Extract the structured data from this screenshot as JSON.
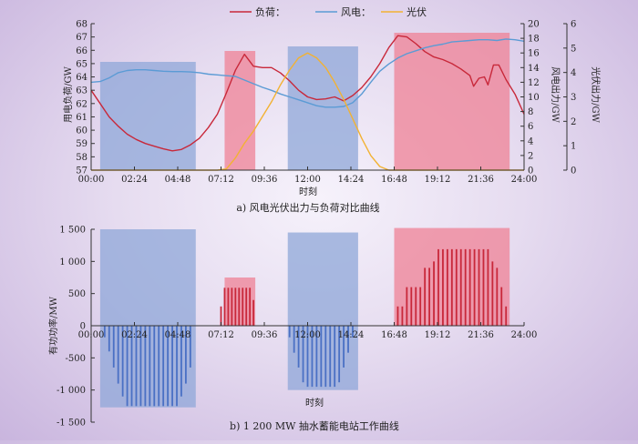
{
  "chart_data": [
    {
      "type": "line",
      "caption": "a) 风电光伏出力与负荷对比曲线",
      "xlabel": "时刻",
      "x_ticks": [
        "00:00",
        "02:24",
        "04:48",
        "07:12",
        "09:36",
        "12:00",
        "14:24",
        "16:48",
        "19:12",
        "21:36",
        "24:00"
      ],
      "xlim_hours": [
        0,
        24
      ],
      "y_left": {
        "label": "用电负荷/GW",
        "lim": [
          57,
          68
        ],
        "ticks": [
          57,
          58,
          59,
          60,
          61,
          62,
          63,
          64,
          65,
          66,
          67,
          68
        ]
      },
      "y_right1": {
        "label": "风电出力/GW",
        "lim": [
          0,
          20
        ],
        "ticks": [
          0,
          2,
          4,
          6,
          8,
          10,
          12,
          14,
          16,
          18,
          20
        ]
      },
      "y_right2": {
        "label": "光伏出力/GW",
        "lim": [
          0,
          6
        ],
        "ticks": [
          0,
          1,
          2,
          3,
          4,
          5,
          6
        ]
      },
      "legend": {
        "position": "top-center",
        "entries": [
          "负荷：",
          "风电：",
          "光伏"
        ]
      },
      "colors": {
        "load": "#c8283a",
        "wind": "#5b9bd5",
        "pv": "#f2b233",
        "blue_band": "#8fa7d8",
        "red_band": "#ef8295"
      },
      "bands": [
        {
          "color": "blue",
          "start": 0.5,
          "end": 5.8
        },
        {
          "color": "red",
          "start": 7.4,
          "end": 9.1
        },
        {
          "color": "blue",
          "start": 10.9,
          "end": 14.8
        },
        {
          "color": "red",
          "start": 16.8,
          "end": 23.2
        }
      ],
      "series": [
        {
          "name": "负荷：",
          "axis": "left",
          "color": "#c8283a",
          "x": [
            0,
            0.5,
            1,
            1.5,
            2,
            2.5,
            3,
            3.5,
            4,
            4.5,
            5,
            5.5,
            6,
            6.5,
            7,
            7.5,
            8,
            8.5,
            9,
            9.5,
            10,
            10.5,
            11,
            11.5,
            12,
            12.5,
            13,
            13.5,
            14,
            14.5,
            15,
            15.5,
            16,
            16.5,
            17,
            17.5,
            18,
            18.5,
            19,
            19.5,
            20,
            20.5,
            21,
            21.2,
            21.5,
            21.8,
            22,
            22.3,
            22.6,
            23,
            23.5,
            24
          ],
          "values": [
            63.0,
            62.0,
            61.0,
            60.3,
            59.7,
            59.3,
            59.0,
            58.8,
            58.6,
            58.45,
            58.55,
            58.9,
            59.4,
            60.2,
            61.2,
            62.8,
            64.5,
            65.7,
            64.8,
            64.7,
            64.7,
            64.3,
            63.7,
            63.0,
            62.5,
            62.3,
            62.35,
            62.5,
            62.2,
            62.6,
            63.2,
            64.0,
            65.0,
            66.2,
            67.1,
            67.0,
            66.5,
            65.9,
            65.5,
            65.3,
            65.0,
            64.6,
            64.1,
            63.3,
            63.9,
            64.0,
            63.4,
            64.9,
            64.9,
            63.8,
            62.7,
            61.2
          ]
        },
        {
          "name": "风电：",
          "axis": "right1",
          "color": "#5b9bd5",
          "x": [
            0,
            0.5,
            1,
            1.5,
            2,
            2.5,
            3,
            3.5,
            4,
            4.5,
            5,
            5.5,
            6,
            6.5,
            7,
            7.5,
            8,
            8.5,
            9,
            9.5,
            10,
            10.5,
            11,
            11.5,
            12,
            12.5,
            13,
            13.5,
            14,
            14.5,
            15,
            15.5,
            16,
            16.5,
            17,
            17.5,
            18,
            18.5,
            19,
            19.5,
            20,
            20.5,
            21,
            21.5,
            22,
            22.5,
            23,
            23.5,
            24
          ],
          "values": [
            12.0,
            12.1,
            12.6,
            13.3,
            13.6,
            13.7,
            13.7,
            13.6,
            13.5,
            13.45,
            13.45,
            13.4,
            13.3,
            13.1,
            13.0,
            12.9,
            12.8,
            12.3,
            11.8,
            11.3,
            10.9,
            10.4,
            10.0,
            9.6,
            9.2,
            8.8,
            8.6,
            8.6,
            8.7,
            9.2,
            10.4,
            12.0,
            13.5,
            14.5,
            15.3,
            15.9,
            16.3,
            16.7,
            17.0,
            17.2,
            17.5,
            17.6,
            17.7,
            17.8,
            17.8,
            17.7,
            17.9,
            17.8,
            17.6
          ]
        },
        {
          "name": "光伏",
          "axis": "right2",
          "color": "#f2b233",
          "x": [
            0,
            6.5,
            7,
            7.5,
            8,
            8.5,
            9,
            9.5,
            10,
            10.5,
            11,
            11.5,
            12,
            12.5,
            13,
            13.5,
            14,
            14.5,
            15,
            15.5,
            16,
            16.5,
            17,
            24
          ],
          "values": [
            0,
            0,
            0,
            0.05,
            0.5,
            1.1,
            1.6,
            2.2,
            2.8,
            3.5,
            4.1,
            4.6,
            4.8,
            4.6,
            4.2,
            3.6,
            2.9,
            2.1,
            1.3,
            0.6,
            0.15,
            0,
            0,
            0
          ]
        }
      ]
    },
    {
      "type": "bar",
      "caption": "b) 1 200 MW 抽水蓄能电站工作曲线",
      "xlabel": "时刻",
      "ylabel": "有功功率/MW",
      "x_ticks": [
        "00:00",
        "02:24",
        "04:48",
        "07:12",
        "09:36",
        "12:00",
        "14:24",
        "16:48",
        "19:12",
        "21:36",
        "24:00"
      ],
      "xlim_hours": [
        0,
        24
      ],
      "ylim": [
        -1500,
        1500
      ],
      "y_ticks": [
        -1500,
        -1000,
        -500,
        0,
        500,
        1000,
        1500
      ],
      "y_tick_labels": [
        "-1 500",
        "-1 000",
        "-500",
        "0",
        "500",
        "1 000",
        "1 500"
      ],
      "bands": [
        {
          "color": "blue",
          "start": 0.5,
          "end": 5.8,
          "low": -1270,
          "high": 1500
        },
        {
          "color": "red",
          "start": 7.4,
          "end": 9.1,
          "low": 0,
          "high": 750
        },
        {
          "color": "blue",
          "start": 10.9,
          "end": 14.8,
          "low": -1000,
          "high": 1450
        },
        {
          "color": "red",
          "start": 16.8,
          "end": 23.2,
          "low": 0,
          "high": 1520
        }
      ],
      "bar_groups": [
        {
          "color": "#4a70c4",
          "start": 0.75,
          "end": 5.5,
          "step": 0.25,
          "values": [
            -180,
            -400,
            -650,
            -900,
            -1100,
            -1250,
            -1250,
            -1250,
            -1250,
            -1250,
            -1250,
            -1250,
            -1250,
            -1250,
            -1250,
            -1250,
            -1250,
            -1100,
            -900,
            -650
          ]
        },
        {
          "color": "#4a70c4",
          "start": 11.0,
          "end": 14.5,
          "step": 0.25,
          "values": [
            -180,
            -420,
            -650,
            -880,
            -950,
            -950,
            -950,
            -950,
            -950,
            -950,
            -950,
            -880,
            -650,
            -420,
            -180
          ]
        },
        {
          "color": "#c8283a",
          "start": 7.2,
          "end": 9.0,
          "step": 0.2,
          "values": [
            300,
            590,
            590,
            590,
            590,
            590,
            590,
            590,
            590,
            400
          ]
        },
        {
          "color": "#c8283a",
          "start": 17.0,
          "end": 23.0,
          "step": 0.25,
          "values": [
            300,
            300,
            600,
            600,
            600,
            600,
            900,
            900,
            1000,
            1190,
            1190,
            1190,
            1190,
            1190,
            1190,
            1190,
            1190,
            1190,
            1190,
            1190,
            1190,
            1000,
            900,
            600,
            300
          ]
        }
      ]
    }
  ]
}
